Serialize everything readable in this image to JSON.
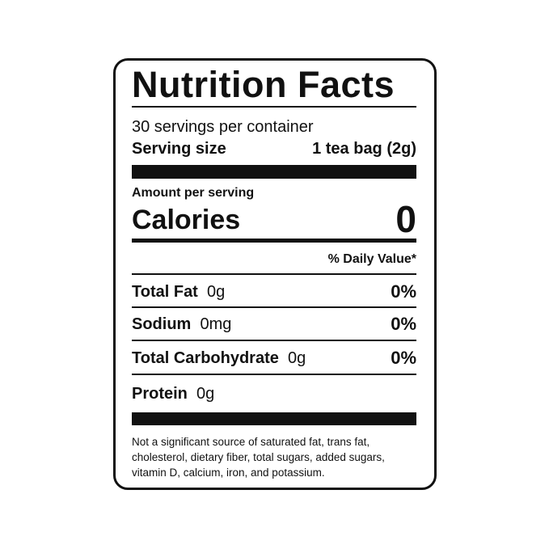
{
  "title": "Nutrition Facts",
  "servings": "30 servings per container",
  "serving_size": {
    "label": "Serving size",
    "value": "1 tea bag (2g)"
  },
  "amount_per_serving": "Amount per serving",
  "calories": {
    "label": "Calories",
    "value": 0
  },
  "daily_value_header": "% Daily Value*",
  "nutrients": [
    {
      "name": "Total Fat",
      "amount": "0g",
      "daily_value": "0%"
    },
    {
      "name": "Sodium",
      "amount": "0mg",
      "daily_value": "0%"
    },
    {
      "name": "Total Carbohydrate",
      "amount": "0g",
      "daily_value": "0%"
    },
    {
      "name": "Protein",
      "amount": "0g"
    }
  ],
  "footnote": [
    "Not a significant source of saturated fat, trans fat,",
    "cholesterol, dietary fiber, total sugars, added sugars,",
    "vitamin D, calcium, iron, and potassium."
  ]
}
